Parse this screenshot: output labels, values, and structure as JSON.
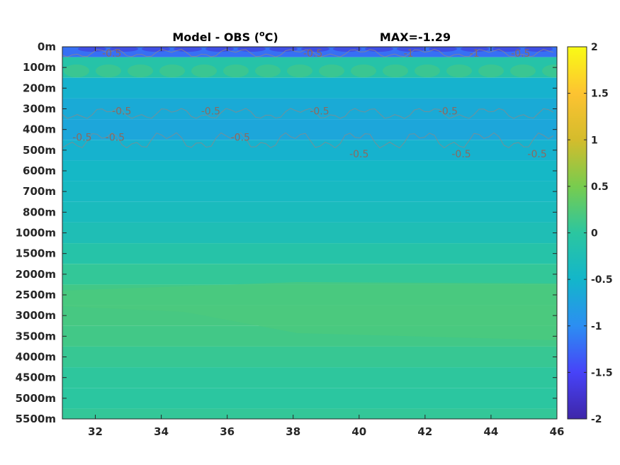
{
  "chart_data": {
    "type": "heatmap",
    "title": "Model - OBS (",
    "title_unit_sup": "o",
    "title_unit_tail": "C)",
    "max_label": "MAX=-1.29",
    "x_ticks": [
      32,
      34,
      36,
      38,
      40,
      42,
      44,
      46
    ],
    "xlim": [
      31,
      46
    ],
    "y_ticks": [
      "0m",
      "100m",
      "200m",
      "300m",
      "400m",
      "500m",
      "600m",
      "700m",
      "800m",
      "1000m",
      "1500m",
      "2000m",
      "2500m",
      "3000m",
      "3500m",
      "4000m",
      "4500m",
      "5000m",
      "5500m"
    ],
    "colorbar": {
      "ticks": [
        2,
        1.5,
        1,
        0.5,
        0,
        -0.5,
        -1,
        -1.5,
        -2
      ],
      "clim": [
        -2,
        2
      ],
      "colormap": [
        "#3e26a8",
        "#4743f8",
        "#2c8ef2",
        "#13b6ca",
        "#2bc6a0",
        "#78cc4e",
        "#d4bc2c",
        "#fdc331",
        "#f9fb15"
      ]
    },
    "depth_profile": [
      {
        "depth": "0m",
        "value": -1.2
      },
      {
        "depth": "100m",
        "value": -0.1
      },
      {
        "depth": "200m",
        "value": -0.55
      },
      {
        "depth": "300m",
        "value": -0.65
      },
      {
        "depth": "400m",
        "value": -0.7
      },
      {
        "depth": "500m",
        "value": -0.55
      },
      {
        "depth": "600m",
        "value": -0.45
      },
      {
        "depth": "700m",
        "value": -0.4
      },
      {
        "depth": "800m",
        "value": -0.35
      },
      {
        "depth": "1000m",
        "value": -0.25
      },
      {
        "depth": "1500m",
        "value": -0.1
      },
      {
        "depth": "2000m",
        "value": 0.05
      },
      {
        "depth": "2500m",
        "value": 0.15
      },
      {
        "depth": "3000m",
        "value": 0.18
      },
      {
        "depth": "3500m",
        "value": 0.15
      },
      {
        "depth": "4000m",
        "value": 0.08
      },
      {
        "depth": "4500m",
        "value": 0.02
      },
      {
        "depth": "5000m",
        "value": 0.0
      },
      {
        "depth": "5500m",
        "value": 0.05
      }
    ],
    "contour_labels": [
      {
        "text": "-0.5",
        "x": 32.5,
        "depth": "0m"
      },
      {
        "text": "-0.5",
        "x": 38.6,
        "depth": "0m"
      },
      {
        "text": "-1",
        "x": 41.5,
        "depth": "0m"
      },
      {
        "text": "-1",
        "x": 43.5,
        "depth": "0m"
      },
      {
        "text": "-0.5",
        "x": 44.9,
        "depth": "0m"
      },
      {
        "text": "-0.5",
        "x": 32.8,
        "depth": "300m"
      },
      {
        "text": "-0.5",
        "x": 35.5,
        "depth": "300m"
      },
      {
        "text": "-0.5",
        "x": 38.8,
        "depth": "300m"
      },
      {
        "text": "-0.5",
        "x": 42.7,
        "depth": "300m"
      },
      {
        "text": "-0.5",
        "x": 31.6,
        "depth": "400m"
      },
      {
        "text": "-0.5",
        "x": 32.6,
        "depth": "400m"
      },
      {
        "text": "-0.5",
        "x": 36.4,
        "depth": "400m"
      },
      {
        "text": "-0.5",
        "x": 40.0,
        "depth": "500m"
      },
      {
        "text": "-0.5",
        "x": 43.1,
        "depth": "500m"
      },
      {
        "text": "-0.5",
        "x": 45.4,
        "depth": "500m"
      }
    ]
  }
}
